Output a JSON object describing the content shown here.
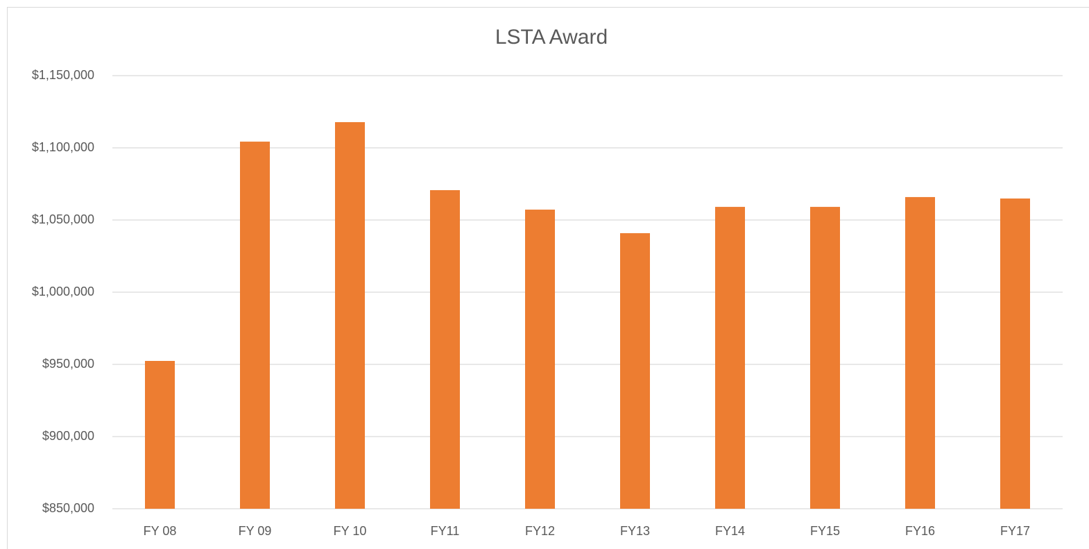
{
  "chart_data": {
    "type": "bar",
    "title": "LSTA Award",
    "categories": [
      "FY 08",
      "FY 09",
      "FY 10",
      "FY11",
      "FY12",
      "FY13",
      "FY14",
      "FY15",
      "FY16",
      "FY17"
    ],
    "values": [
      952400,
      1104300,
      1117800,
      1070700,
      1057200,
      1040900,
      1059100,
      1059100,
      1065900,
      1064900
    ],
    "color": "#ed7d31",
    "ylim": [
      850000,
      1150000
    ],
    "yticks": [
      {
        "value": 850000,
        "label": "$850,000"
      },
      {
        "value": 900000,
        "label": "$900,000"
      },
      {
        "value": 950000,
        "label": "$950,000"
      },
      {
        "value": 1000000,
        "label": "$1,000,000"
      },
      {
        "value": 1050000,
        "label": "$1,050,000"
      },
      {
        "value": 1100000,
        "label": "$1,100,000"
      },
      {
        "value": 1150000,
        "label": "$1,150,000"
      }
    ],
    "grid": true
  }
}
